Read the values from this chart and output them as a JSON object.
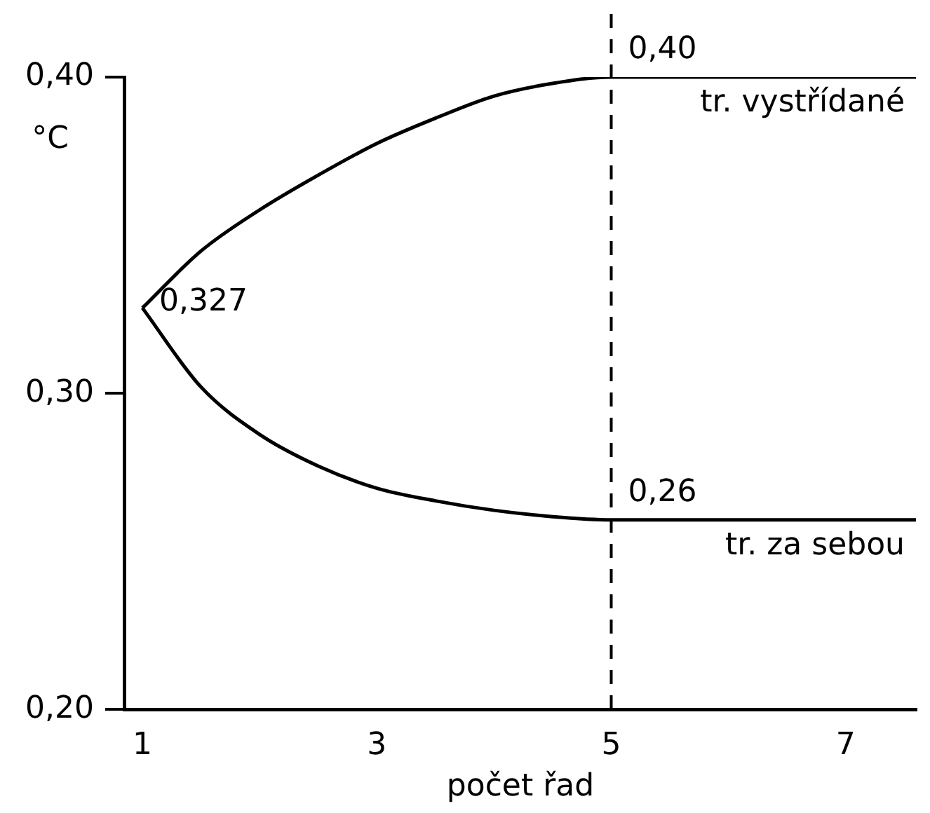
{
  "chart_data": {
    "type": "line",
    "xlabel": "počet řad",
    "ylabel": "°C",
    "x": [
      1,
      1.5,
      2,
      2.5,
      3,
      3.5,
      4,
      4.5,
      5,
      7.6
    ],
    "series": [
      {
        "name": "tr. vystřídané",
        "color": "#000000",
        "values": [
          0.327,
          0.345,
          0.358,
          0.369,
          0.379,
          0.387,
          0.394,
          0.398,
          0.4,
          0.4
        ],
        "value_labels": [
          "0,327",
          null,
          null,
          null,
          null,
          null,
          null,
          null,
          "0,40",
          null
        ]
      },
      {
        "name": "tr. za sebou",
        "color": "#000000",
        "values": [
          0.327,
          0.302,
          0.287,
          0.277,
          0.27,
          0.266,
          0.263,
          0.261,
          0.26,
          0.26
        ],
        "value_labels": [
          null,
          null,
          null,
          null,
          null,
          null,
          null,
          null,
          "0,26",
          null
        ]
      }
    ],
    "xlim": [
      0.85,
      7.6
    ],
    "xticks": [
      1,
      3,
      5,
      7
    ],
    "ylim": [
      0.2,
      0.4
    ],
    "yticks": [
      {
        "value": 0.2,
        "label": "0,20"
      },
      {
        "value": 0.3,
        "label": "0,30"
      },
      {
        "value": 0.4,
        "label": "0,40"
      }
    ],
    "ref_lines": [
      {
        "axis": "x",
        "value": 5,
        "line_style": "dashed",
        "color": "#000000"
      }
    ],
    "grid": false,
    "legend": false,
    "marker": "none",
    "line_style": "solid"
  }
}
